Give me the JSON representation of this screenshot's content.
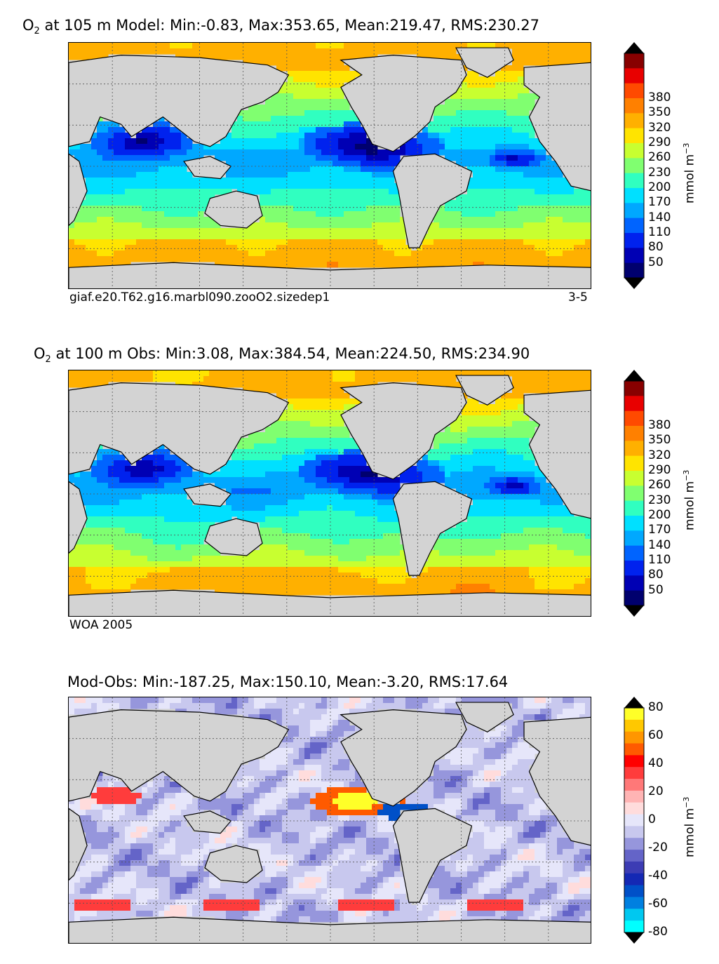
{
  "panels": [
    {
      "title_prefix": "O",
      "title_sub": "2",
      "title_rest": " at 105 m Model: Min:-0.83, Max:353.65, Mean:219.47, RMS:230.27",
      "caption_left": "giaf.e20.T62.g16.marbl090.zooO2.sizedep1",
      "caption_right": "3-5"
    },
    {
      "title_prefix": "O",
      "title_sub": "2",
      "title_rest": " at 100 m Obs: Min:3.08, Max:384.54, Mean:224.50, RMS:234.90",
      "caption_left": "WOA 2005",
      "caption_right": ""
    },
    {
      "title_prefix": "",
      "title_sub": "",
      "title_rest": "Mod-Obs: Min:-187.25, Max:150.10, Mean:-3.20, RMS:17.64",
      "caption_left": "",
      "caption_right": ""
    }
  ],
  "colorbar_o2": {
    "ticks": [
      "50",
      "80",
      "110",
      "140",
      "170",
      "200",
      "230",
      "260",
      "290",
      "320",
      "350",
      "380"
    ],
    "unit_main": "mmol m",
    "unit_sup": "−3",
    "colors": [
      "#00006e",
      "#0000b4",
      "#0022ee",
      "#0064ff",
      "#00a8ff",
      "#00e0ff",
      "#30ffc0",
      "#80ff70",
      "#c8ff30",
      "#ffe400",
      "#ffb000",
      "#ff8000",
      "#ff4a00",
      "#e80000",
      "#880000"
    ]
  },
  "colorbar_diff": {
    "ticks": [
      "-80",
      "-60",
      "-40",
      "-20",
      "0",
      "20",
      "40",
      "60",
      "80"
    ],
    "unit_main": "mmol m",
    "unit_sup": "−3",
    "colors": [
      "#00ffff",
      "#00c8f0",
      "#0080e0",
      "#0050c8",
      "#1428b4",
      "#3c3cb4",
      "#6464c8",
      "#9696dc",
      "#c8c8ee",
      "#e6e6fa",
      "#ffdcdc",
      "#ffb4b4",
      "#ff7878",
      "#ff3c3c",
      "#ff0000",
      "#ff5a00",
      "#ff9600",
      "#ffc800",
      "#ffff28"
    ]
  }
}
